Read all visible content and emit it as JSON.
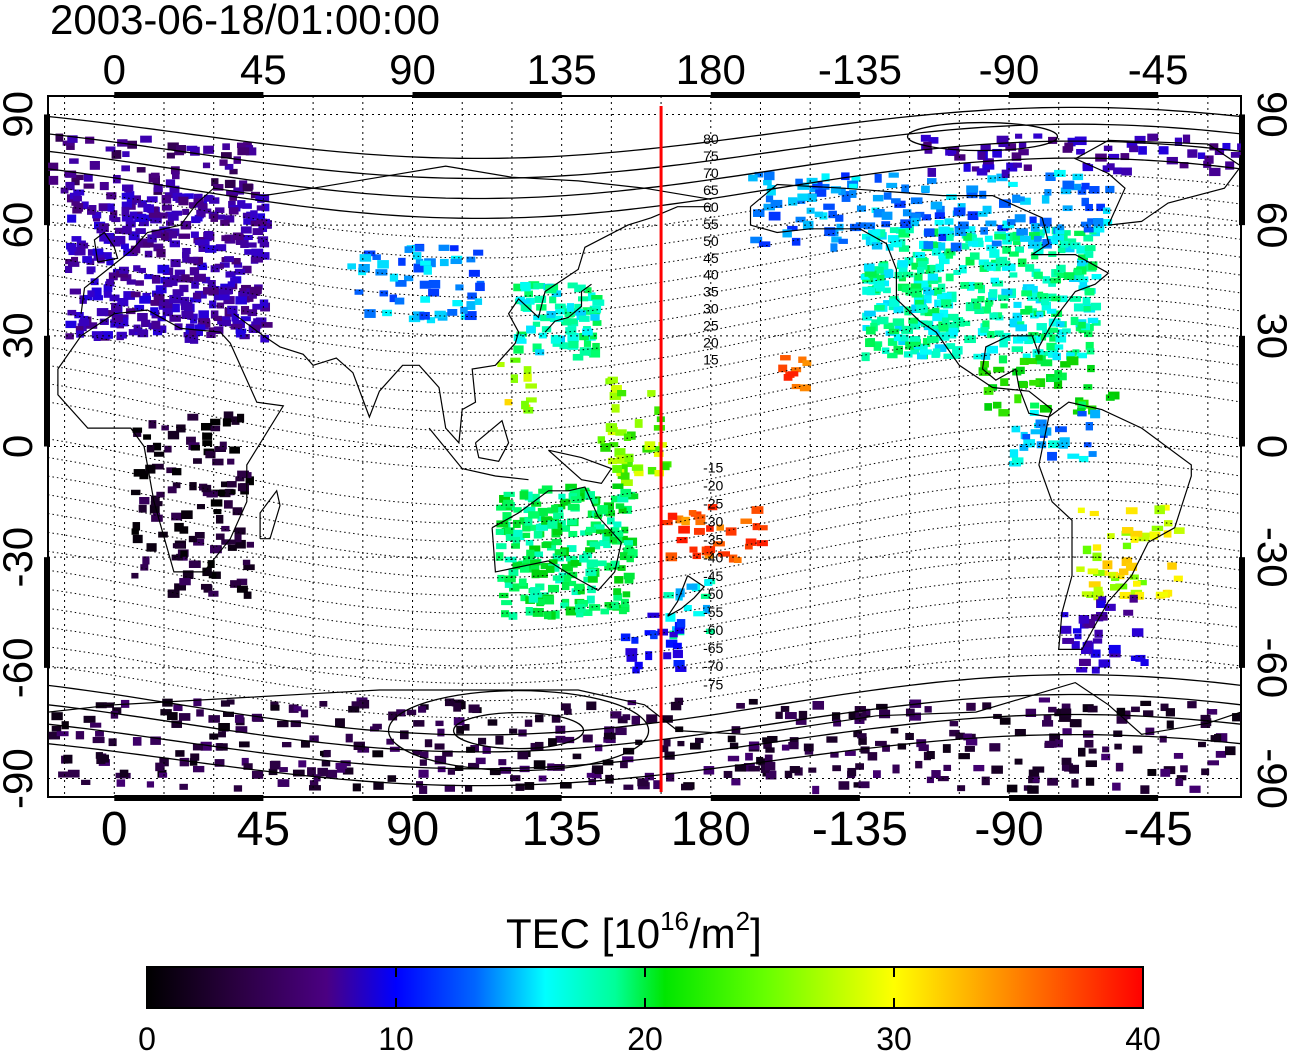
{
  "title": "2003-06-18/01:00:00",
  "lon_ticks": [
    "0",
    "45",
    "90",
    "135",
    "180",
    "-135",
    "-90",
    "-45"
  ],
  "lat_ticks": [
    "90",
    "60",
    "30",
    "0",
    "-30",
    "-60",
    "-90"
  ],
  "colorbar": {
    "label_main": "TEC  [10",
    "label_sup1": "16",
    "label_mid": "/m",
    "label_sup2": "2",
    "label_end": "]",
    "tick_labels": [
      "0",
      "10",
      "20",
      "30",
      "40"
    ],
    "min": 0,
    "max": 40
  },
  "local_time_meridian_lon": 165,
  "contour_labels_north": [
    "80",
    "75",
    "70",
    "65",
    "60",
    "55",
    "50",
    "45",
    "40",
    "35",
    "30",
    "25",
    "20",
    "15"
  ],
  "contour_labels_south": [
    "-15",
    "-20",
    "-25",
    "-30",
    "-35",
    "-40",
    "-45",
    "-50",
    "-55",
    "-60",
    "-65",
    "-70",
    "-75"
  ],
  "colors": {
    "meridian": "#ff0000",
    "frame": "#000000",
    "colormap": [
      "#000000",
      "#2a0040",
      "#4b0082",
      "#3300cc",
      "#0000ff",
      "#0066ff",
      "#00ffff",
      "#00ff66",
      "#00cc00",
      "#66ff00",
      "#ffff00",
      "#ff9900",
      "#ff3300",
      "#ff0000"
    ]
  },
  "map": {
    "projection": "equirectangular",
    "lon_range": [
      -20,
      340
    ],
    "lat_range": [
      -95,
      95
    ],
    "grid": true,
    "data_regions": [
      {
        "region": "Europe",
        "lon": [
          -15,
          45
        ],
        "lat": [
          30,
          70
        ],
        "tec": 8
      },
      {
        "region": "North Atlantic / Arctic",
        "lon": [
          -20,
          40
        ],
        "lat": [
          70,
          85
        ],
        "tec": 6
      },
      {
        "region": "Central Asia",
        "lon": [
          70,
          110
        ],
        "lat": [
          35,
          55
        ],
        "tec": 16
      },
      {
        "region": "Japan / East Asia",
        "lon": [
          120,
          145
        ],
        "lat": [
          25,
          45
        ],
        "tec": 20
      },
      {
        "region": "South China Sea",
        "lon": [
          115,
          125
        ],
        "lat": [
          10,
          25
        ],
        "tec": 30
      },
      {
        "region": "Western Pacific",
        "lon": [
          145,
          165
        ],
        "lat": [
          -10,
          20
        ],
        "tec": 28
      },
      {
        "region": "Southwest Pacific",
        "lon": [
          165,
          195
        ],
        "lat": [
          -30,
          -15
        ],
        "tec": 36
      },
      {
        "region": "Australia",
        "lon": [
          115,
          155
        ],
        "lat": [
          -45,
          -10
        ],
        "tec": 22
      },
      {
        "region": "New Zealand",
        "lon": [
          165,
          180
        ],
        "lat": [
          -50,
          -35
        ],
        "tec": 19
      },
      {
        "region": "Tasman Sea",
        "lon": [
          150,
          170
        ],
        "lat": [
          -60,
          -45
        ],
        "tec": 12
      },
      {
        "region": "Hawaii",
        "lon": [
          200,
          208
        ],
        "lat": [
          15,
          25
        ],
        "tec": 36
      },
      {
        "region": "North America",
        "lon": [
          225,
          295
        ],
        "lat": [
          25,
          60
        ],
        "tec": 20
      },
      {
        "region": "Alaska / Canada",
        "lon": [
          190,
          300
        ],
        "lat": [
          55,
          75
        ],
        "tec": 16
      },
      {
        "region": "Arctic Canada",
        "lon": [
          240,
          340
        ],
        "lat": [
          75,
          85
        ],
        "tec": 8
      },
      {
        "region": "Gulf / Caribbean",
        "lon": [
          260,
          300
        ],
        "lat": [
          10,
          25
        ],
        "tec": 24
      },
      {
        "region": "Central America",
        "lon": [
          270,
          295
        ],
        "lat": [
          -5,
          10
        ],
        "tec": 17
      },
      {
        "region": "South America",
        "lon": [
          290,
          320
        ],
        "lat": [
          -40,
          -15
        ],
        "tec": 30
      },
      {
        "region": "Southern South America",
        "lon": [
          285,
          310
        ],
        "lat": [
          -60,
          -40
        ],
        "tec": 9
      },
      {
        "region": "Africa",
        "lon": [
          5,
          40
        ],
        "lat": [
          -40,
          10
        ],
        "tec": 2
      },
      {
        "region": "Antarctica",
        "lon": [
          -20,
          340
        ],
        "lat": [
          -92,
          -68
        ],
        "tec": 3
      }
    ]
  }
}
